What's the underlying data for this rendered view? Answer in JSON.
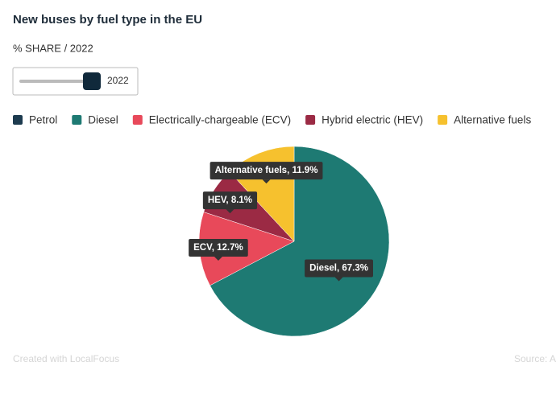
{
  "chart_data": {
    "type": "pie",
    "title": "New buses by fuel type in the EU",
    "subtitle": "% SHARE / 2022",
    "slider": {
      "label": "2022"
    },
    "categories": [
      "Petrol",
      "Diesel",
      "Electrically-chargeable (ECV)",
      "Hybrid electric (HEV)",
      "Alternative fuels"
    ],
    "values": [
      0,
      67.3,
      12.7,
      8.1,
      11.9
    ],
    "value_labels": [
      null,
      "Diesel, 67.3%",
      "ECV, 12.7%",
      "HEV, 8.1%",
      "Alternative fuels, 11.9%"
    ],
    "colors": [
      "#1d3b4f",
      "#1e7a73",
      "#e8495a",
      "#9b2a44",
      "#f6c12e"
    ],
    "footer": "Created with LocalFocus",
    "source": "Source: A"
  }
}
